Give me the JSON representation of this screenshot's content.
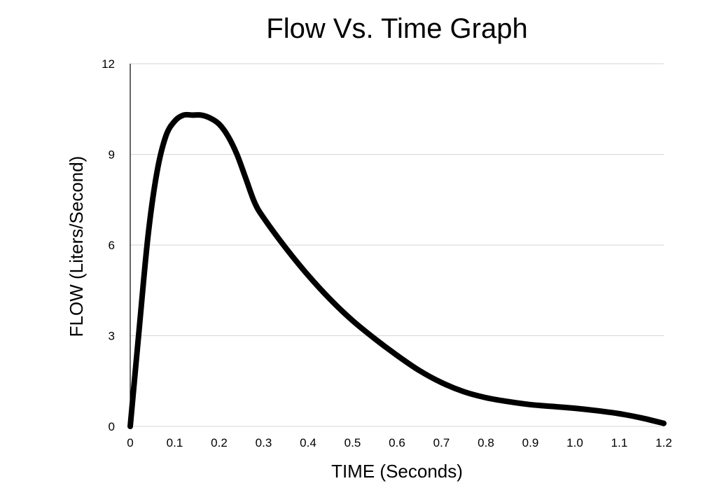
{
  "chart_data": {
    "type": "line",
    "title": "Flow Vs. Time Graph",
    "xlabel": "TIME (Seconds)",
    "ylabel": "FLOW (Liters/Second)",
    "xlim": [
      0,
      1.2
    ],
    "ylim": [
      0,
      12
    ],
    "x_ticks": [
      "0",
      "0.1",
      "0.2",
      "0.3",
      "0.4",
      "0.5",
      "0.6",
      "0.7",
      "0.8",
      "0.9",
      "1.0",
      "1.1",
      "1.2"
    ],
    "y_ticks": [
      "0",
      "3",
      "6",
      "9",
      "12"
    ],
    "grid": "horizontal",
    "line_color": "#000000",
    "series": [
      {
        "x": [
          0,
          0.02,
          0.04,
          0.06,
          0.08,
          0.1,
          0.12,
          0.14,
          0.16,
          0.18,
          0.2,
          0.22,
          0.24,
          0.26,
          0.28,
          0.3,
          0.35,
          0.4,
          0.45,
          0.5,
          0.55,
          0.6,
          0.65,
          0.7,
          0.75,
          0.8,
          0.85,
          0.9,
          0.95,
          1.0,
          1.05,
          1.1,
          1.15,
          1.2
        ],
        "y": [
          0,
          3.2,
          6.3,
          8.4,
          9.6,
          10.1,
          10.3,
          10.3,
          10.3,
          10.2,
          10.0,
          9.6,
          9.0,
          8.2,
          7.4,
          6.9,
          5.9,
          5.0,
          4.2,
          3.5,
          2.9,
          2.35,
          1.85,
          1.45,
          1.15,
          0.95,
          0.82,
          0.72,
          0.66,
          0.6,
          0.52,
          0.42,
          0.28,
          0.1
        ]
      }
    ]
  }
}
